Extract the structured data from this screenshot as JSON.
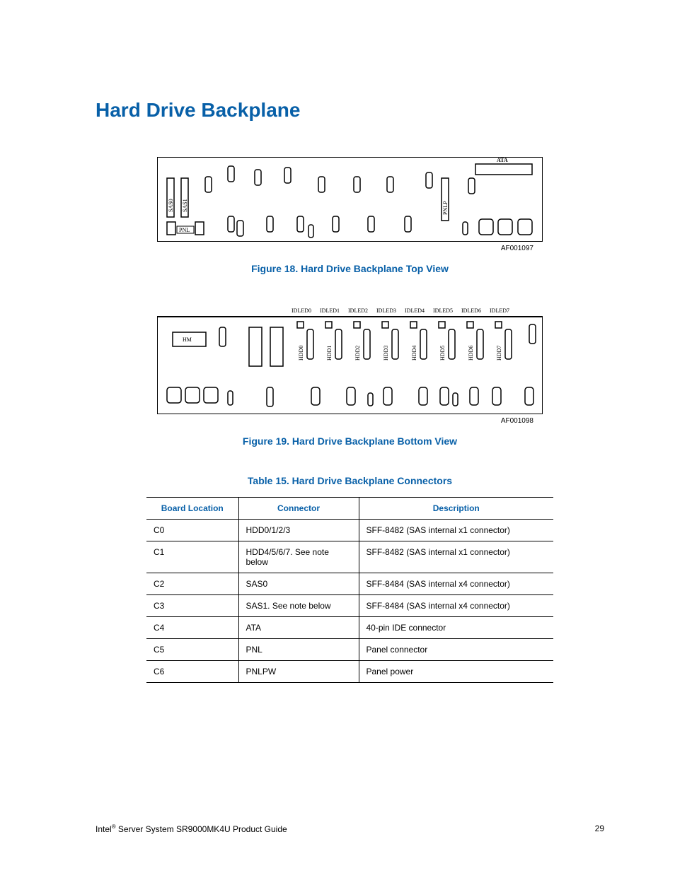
{
  "heading": "Hard Drive Backplane",
  "figure1": {
    "caption": "Figure 18. Hard Drive Backplane Top View",
    "id": "AF001097",
    "labels": {
      "sas0": "SAS0",
      "sas1": "SAS1",
      "pnl": "PNL",
      "pnlp": "PNLP",
      "ata": "ATA"
    }
  },
  "figure2": {
    "caption": "Figure 19. Hard Drive Backplane Bottom View",
    "id": "AF001098",
    "labels": {
      "hm": "HM",
      "idled": [
        "IDLED0",
        "IDLED1",
        "IDLED2",
        "IDLED3",
        "IDLED4",
        "IDLED5",
        "IDLED6",
        "IDLED7"
      ],
      "hdd": [
        "HDD0",
        "HDD1",
        "HDD2",
        "HDD3",
        "HDD4",
        "HDD5",
        "HDD6",
        "HDD7"
      ]
    }
  },
  "table": {
    "caption": "Table 15. Hard Drive Backplane Connectors",
    "headers": [
      "Board Location",
      "Connector",
      "Description"
    ],
    "rows": [
      [
        "C0",
        "HDD0/1/2/3",
        "SFF-8482 (SAS internal x1 connector)"
      ],
      [
        "C1",
        "HDD4/5/6/7. See note below",
        "SFF-8482 (SAS internal x1 connector)"
      ],
      [
        "C2",
        "SAS0",
        "SFF-8484 (SAS internal x4 connector)"
      ],
      [
        "C3",
        "SAS1. See note below",
        "SFF-8484 (SAS internal x4 connector)"
      ],
      [
        "C4",
        "ATA",
        "40-pin IDE connector"
      ],
      [
        "C5",
        "PNL",
        "Panel connector"
      ],
      [
        "C6",
        "PNLPW",
        "Panel power"
      ]
    ]
  },
  "footer": {
    "left_prefix": "Intel",
    "left_suffix": " Server System SR9000MK4U Product Guide",
    "reg": "®",
    "page": "29"
  },
  "colors": {
    "accent": "#0860a8",
    "text": "#000000",
    "line": "#000000"
  }
}
